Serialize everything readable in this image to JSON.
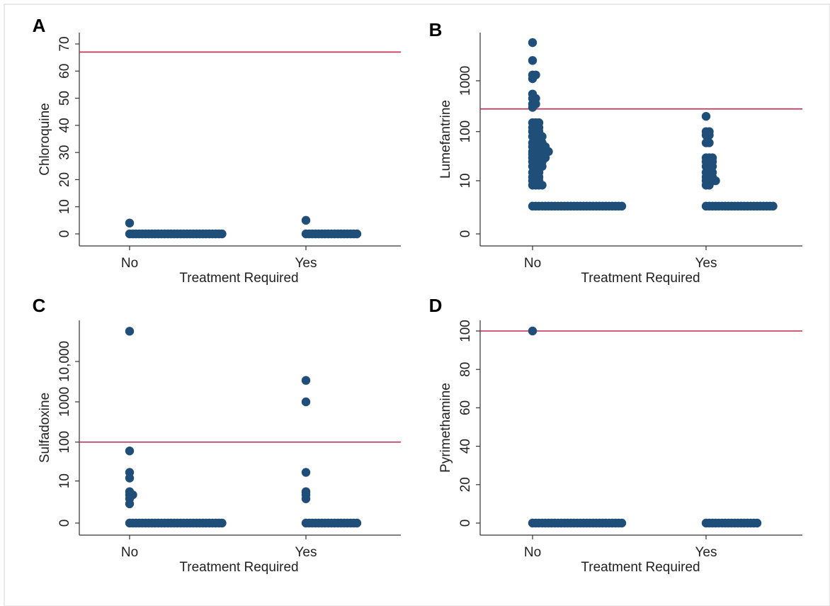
{
  "chart_data": [
    {
      "type": "strip",
      "panel_label": "A",
      "y_label": "Chloroquine",
      "x_label": "Treatment Required",
      "categories": [
        "No",
        "Yes"
      ],
      "color": "#1f4e79",
      "yscale": "linear",
      "groups": [
        {
          "values": [
            4,
            0
          ],
          "counts": [
            1,
            30
          ]
        },
        {
          "values": [
            5,
            0
          ],
          "counts": [
            1,
            17
          ]
        }
      ],
      "reference_line": {
        "value": 67,
        "color": "#c0284f"
      },
      "ylim": [
        0,
        70
      ],
      "yticks": [
        0,
        10,
        20,
        30,
        40,
        50,
        60,
        70
      ]
    },
    {
      "type": "strip",
      "panel_label": "B",
      "y_label": "Lumefantrine",
      "x_label": "Treatment Required",
      "categories": [
        "No",
        "Yes"
      ],
      "color": "#1f4e79",
      "yscale": "log1p",
      "groups": [
        {
          "values": [
            5600,
            2500,
            1300,
            1100,
            550,
            450,
            350,
            300,
            150,
            120,
            100,
            80,
            60,
            50,
            40,
            35,
            30,
            25,
            20,
            15,
            12,
            10,
            8,
            2.5
          ],
          "counts": [
            1,
            1,
            2,
            1,
            1,
            2,
            2,
            1,
            3,
            3,
            3,
            4,
            4,
            5,
            6,
            4,
            5,
            4,
            4,
            3,
            3,
            3,
            4,
            29
          ]
        },
        {
          "values": [
            200,
            100,
            85,
            60,
            30,
            25,
            20,
            15,
            12,
            10,
            8,
            2.5
          ],
          "counts": [
            1,
            2,
            2,
            2,
            3,
            3,
            3,
            3,
            3,
            4,
            2,
            22
          ]
        }
      ],
      "reference_line": {
        "value": 280,
        "color": "#c0284f"
      },
      "ylim": [
        0,
        10000
      ],
      "yticks": [
        0,
        10,
        100,
        1000
      ]
    },
    {
      "type": "strip",
      "panel_label": "C",
      "y_label": "Sulfadoxine",
      "x_label": "Treatment Required",
      "categories": [
        "No",
        "Yes"
      ],
      "color": "#1f4e79",
      "yscale": "log1p",
      "groups": [
        {
          "values": [
            56000,
            60,
            17,
            12,
            5,
            4,
            3,
            2,
            0
          ],
          "counts": [
            1,
            1,
            1,
            1,
            1,
            2,
            1,
            1,
            30
          ]
        },
        {
          "values": [
            3400,
            1000,
            17,
            5,
            4,
            3,
            0
          ],
          "counts": [
            1,
            1,
            1,
            1,
            1,
            1,
            17
          ]
        }
      ],
      "reference_line": {
        "value": 100,
        "color": "#c0284f"
      },
      "ylim": [
        0,
        100000
      ],
      "yticks": [
        0,
        10,
        100,
        1000,
        {
          "value": 10000,
          "label": "10,000"
        }
      ]
    },
    {
      "type": "strip",
      "panel_label": "D",
      "y_label": "Pyrimethamine",
      "x_label": "Treatment Required",
      "categories": [
        "No",
        "Yes"
      ],
      "color": "#1f4e79",
      "yscale": "linear",
      "groups": [
        {
          "values": [
            100,
            0
          ],
          "counts": [
            1,
            29
          ]
        },
        {
          "values": [
            0
          ],
          "counts": [
            17
          ]
        }
      ],
      "reference_line": {
        "value": 100,
        "color": "#c0284f"
      },
      "ylim": [
        0,
        100
      ],
      "yticks": [
        0,
        20,
        40,
        60,
        80,
        100
      ]
    }
  ]
}
